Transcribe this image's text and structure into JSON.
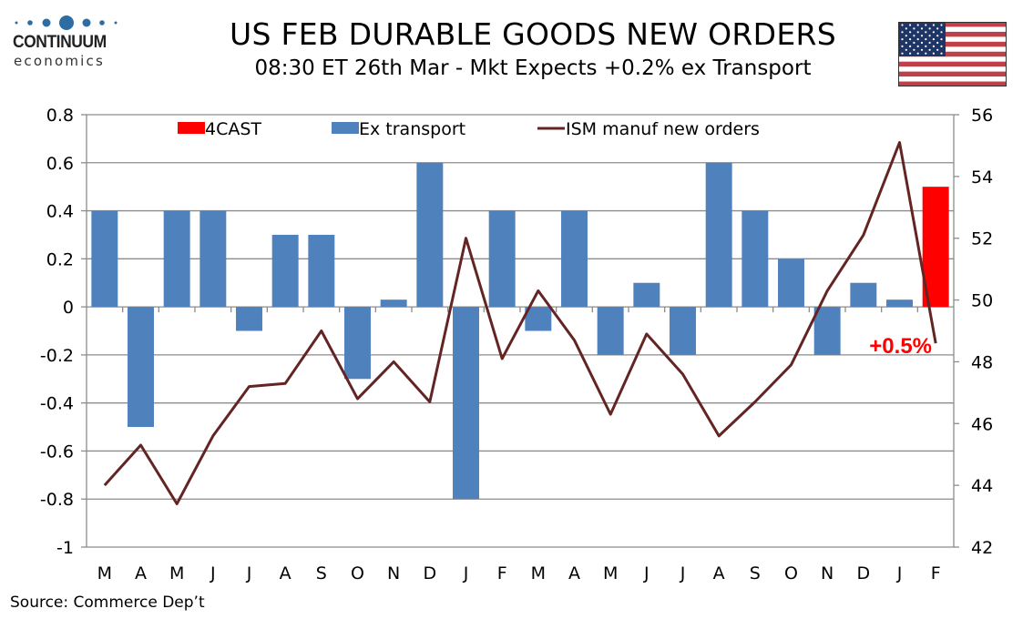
{
  "header": {
    "logo_name": "CONTINUUM",
    "logo_sub": "economics",
    "title": "US FEB DURABLE GOODS NEW ORDERS",
    "subtitle": "08:30 ET 26th Mar - Mkt Expects +0.2% ex Transport",
    "flag_icon": "us-flag-icon"
  },
  "footer": {
    "source": "Source: Commerce Dep’t"
  },
  "colors": {
    "bar": "#4f81bd",
    "forecast": "#ff0000",
    "line": "#632523",
    "grid": "#8c8c8c",
    "logo": "#2e6da4"
  },
  "chart_data": {
    "type": "bar+line",
    "title": "US FEB DURABLE GOODS NEW ORDERS",
    "categories": [
      "M",
      "A",
      "M",
      "J",
      "J",
      "A",
      "S",
      "O",
      "N",
      "D",
      "J",
      "F",
      "M",
      "A",
      "M",
      "J",
      "J",
      "A",
      "S",
      "O",
      "N",
      "D",
      "J",
      "F"
    ],
    "series": [
      {
        "name": "4CAST",
        "type": "bar",
        "axis": "left",
        "values": [
          null,
          null,
          null,
          null,
          null,
          null,
          null,
          null,
          null,
          null,
          null,
          null,
          null,
          null,
          null,
          null,
          null,
          null,
          null,
          null,
          null,
          null,
          null,
          0.5
        ]
      },
      {
        "name": "Ex transport",
        "type": "bar",
        "axis": "left",
        "values": [
          0.4,
          -0.5,
          0.4,
          0.4,
          -0.1,
          0.3,
          0.3,
          -0.3,
          0.03,
          0.6,
          -0.8,
          0.4,
          -0.1,
          0.4,
          -0.2,
          0.1,
          -0.2,
          0.6,
          0.4,
          0.2,
          -0.2,
          0.1,
          0.03,
          null
        ]
      },
      {
        "name": "ISM manuf new orders",
        "type": "line",
        "axis": "right",
        "values": [
          44.0,
          45.3,
          43.4,
          45.6,
          47.2,
          47.3,
          49.0,
          46.8,
          48.0,
          46.7,
          52.0,
          48.1,
          50.3,
          48.7,
          46.3,
          48.9,
          47.6,
          45.6,
          46.7,
          47.9,
          50.3,
          52.1,
          55.1,
          48.6
        ]
      }
    ],
    "y_left": {
      "min": -1,
      "max": 0.8,
      "ticks": [
        "0.8",
        "0.6",
        "0.4",
        "0.2",
        "0",
        "-0.2",
        "-0.4",
        "-0.6",
        "-0.8",
        "-1"
      ],
      "tick_values": [
        0.8,
        0.6,
        0.4,
        0.2,
        0,
        -0.2,
        -0.4,
        -0.6,
        -0.8,
        -1
      ]
    },
    "y_right": {
      "min": 42,
      "max": 56,
      "ticks": [
        "56",
        "54",
        "52",
        "50",
        "48",
        "46",
        "44",
        "42"
      ],
      "tick_values": [
        56,
        54,
        52,
        50,
        48,
        46,
        44,
        42
      ]
    },
    "legend": {
      "placement": "top",
      "entries": [
        "4CAST",
        "Ex transport",
        "ISM manuf new orders"
      ]
    },
    "annotation": {
      "text": "+0.5%",
      "category_index": 23
    },
    "grid": true
  }
}
